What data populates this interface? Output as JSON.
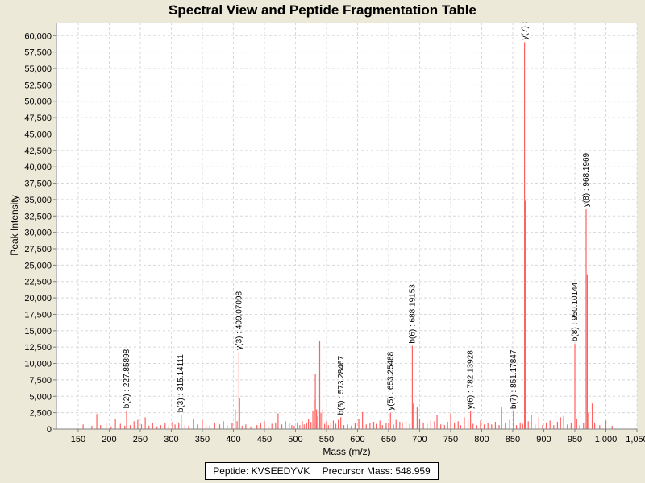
{
  "chart_data": {
    "type": "bar",
    "title": "Spectral View and Peptide Fragmentation Table",
    "xlabel": "Mass (m/z)",
    "ylabel": "Peak Intensity",
    "xlim": [
      115,
      1050
    ],
    "ylim": [
      0,
      62000
    ],
    "xticks": [
      150,
      200,
      250,
      300,
      350,
      400,
      450,
      500,
      550,
      600,
      650,
      700,
      750,
      800,
      850,
      900,
      950,
      1000,
      1050
    ],
    "xtick_labels": [
      "150",
      "200",
      "250",
      "300",
      "350",
      "400",
      "450",
      "500",
      "550",
      "600",
      "650",
      "700",
      "750",
      "800",
      "850",
      "900",
      "950",
      "1,000",
      "1,050"
    ],
    "yticks": [
      0,
      2500,
      5000,
      7500,
      10000,
      12500,
      15000,
      17500,
      20000,
      22500,
      25000,
      27500,
      30000,
      32500,
      35000,
      37500,
      40000,
      42500,
      45000,
      47500,
      50000,
      52500,
      55000,
      57500,
      60000
    ],
    "ytick_labels": [
      "0",
      "2,500",
      "5,000",
      "7,500",
      "10,000",
      "12,500",
      "15,000",
      "17,500",
      "20,000",
      "22,500",
      "25,000",
      "27,500",
      "30,000",
      "32,500",
      "35,000",
      "37,500",
      "40,000",
      "42,500",
      "45,000",
      "47,500",
      "50,000",
      "52,500",
      "55,000",
      "57,500",
      "60,000"
    ],
    "grid": true,
    "bar_color": "#FF6060",
    "peaks": [
      [
        158,
        700
      ],
      [
        172,
        500
      ],
      [
        180,
        2300
      ],
      [
        186,
        600
      ],
      [
        195,
        900
      ],
      [
        203,
        400
      ],
      [
        210,
        1500
      ],
      [
        218,
        800
      ],
      [
        225,
        500
      ],
      [
        228,
        2800
      ],
      [
        234,
        600
      ],
      [
        240,
        1200
      ],
      [
        246,
        1400
      ],
      [
        252,
        700
      ],
      [
        258,
        1800
      ],
      [
        264,
        500
      ],
      [
        270,
        900
      ],
      [
        277,
        400
      ],
      [
        283,
        600
      ],
      [
        290,
        900
      ],
      [
        296,
        500
      ],
      [
        302,
        1100
      ],
      [
        306,
        700
      ],
      [
        312,
        1000
      ],
      [
        316,
        2200
      ],
      [
        322,
        600
      ],
      [
        328,
        500
      ],
      [
        336,
        1500
      ],
      [
        342,
        700
      ],
      [
        350,
        1400
      ],
      [
        356,
        600
      ],
      [
        362,
        500
      ],
      [
        370,
        1000
      ],
      [
        378,
        700
      ],
      [
        384,
        1200
      ],
      [
        390,
        600
      ],
      [
        398,
        900
      ],
      [
        403,
        3000
      ],
      [
        406,
        1200
      ],
      [
        409,
        11700
      ],
      [
        410,
        4800
      ],
      [
        414,
        500
      ],
      [
        420,
        700
      ],
      [
        428,
        400
      ],
      [
        438,
        600
      ],
      [
        444,
        900
      ],
      [
        450,
        1200
      ],
      [
        456,
        500
      ],
      [
        462,
        800
      ],
      [
        468,
        1000
      ],
      [
        472,
        2400
      ],
      [
        478,
        700
      ],
      [
        484,
        1200
      ],
      [
        490,
        900
      ],
      [
        494,
        600
      ],
      [
        498,
        500
      ],
      [
        503,
        1000
      ],
      [
        507,
        600
      ],
      [
        511,
        1200
      ],
      [
        514,
        700
      ],
      [
        518,
        900
      ],
      [
        521,
        1500
      ],
      [
        525,
        1100
      ],
      [
        528,
        2800
      ],
      [
        530,
        4500
      ],
      [
        532,
        8400
      ],
      [
        534,
        3000
      ],
      [
        536,
        2000
      ],
      [
        539,
        13500
      ],
      [
        541,
        2500
      ],
      [
        544,
        3000
      ],
      [
        547,
        800
      ],
      [
        550,
        1200
      ],
      [
        553,
        600
      ],
      [
        557,
        1000
      ],
      [
        561,
        1300
      ],
      [
        565,
        800
      ],
      [
        569,
        1400
      ],
      [
        573,
        1800
      ],
      [
        578,
        600
      ],
      [
        584,
        700
      ],
      [
        590,
        500
      ],
      [
        596,
        900
      ],
      [
        602,
        1500
      ],
      [
        608,
        2600
      ],
      [
        614,
        700
      ],
      [
        620,
        900
      ],
      [
        626,
        1100
      ],
      [
        630,
        800
      ],
      [
        636,
        1300
      ],
      [
        640,
        600
      ],
      [
        646,
        900
      ],
      [
        650,
        1000
      ],
      [
        653,
        2500
      ],
      [
        658,
        700
      ],
      [
        662,
        1400
      ],
      [
        668,
        1100
      ],
      [
        672,
        900
      ],
      [
        678,
        1200
      ],
      [
        684,
        800
      ],
      [
        688.2,
        12700
      ],
      [
        690,
        3900
      ],
      [
        696,
        3300
      ],
      [
        700,
        1600
      ],
      [
        706,
        1000
      ],
      [
        712,
        800
      ],
      [
        718,
        1300
      ],
      [
        724,
        1200
      ],
      [
        728,
        2200
      ],
      [
        734,
        700
      ],
      [
        740,
        600
      ],
      [
        745,
        1100
      ],
      [
        750,
        2400
      ],
      [
        756,
        900
      ],
      [
        762,
        1200
      ],
      [
        766,
        600
      ],
      [
        772,
        1800
      ],
      [
        778,
        1400
      ],
      [
        782,
        2700
      ],
      [
        786,
        800
      ],
      [
        792,
        600
      ],
      [
        798,
        1300
      ],
      [
        804,
        700
      ],
      [
        810,
        900
      ],
      [
        816,
        700
      ],
      [
        822,
        1100
      ],
      [
        828,
        600
      ],
      [
        832,
        3300
      ],
      [
        838,
        900
      ],
      [
        845,
        1400
      ],
      [
        851,
        2700
      ],
      [
        856,
        600
      ],
      [
        862,
        1000
      ],
      [
        866,
        800
      ],
      [
        869,
        59000
      ],
      [
        870,
        34800
      ],
      [
        875,
        1200
      ],
      [
        880,
        2200
      ],
      [
        886,
        700
      ],
      [
        892,
        1800
      ],
      [
        898,
        600
      ],
      [
        904,
        900
      ],
      [
        910,
        1300
      ],
      [
        916,
        600
      ],
      [
        922,
        1100
      ],
      [
        927,
        1800
      ],
      [
        932,
        2000
      ],
      [
        938,
        700
      ],
      [
        944,
        900
      ],
      [
        950,
        13000
      ],
      [
        953,
        1600
      ],
      [
        958,
        600
      ],
      [
        964,
        900
      ],
      [
        968.2,
        33500
      ],
      [
        970,
        23600
      ],
      [
        972,
        2500
      ],
      [
        978,
        3900
      ],
      [
        982,
        1000
      ],
      [
        990,
        600
      ],
      [
        1000,
        1300
      ],
      [
        1010,
        500
      ]
    ],
    "annotations": [
      {
        "x": 227.85898,
        "y": 2800,
        "label": "b(2) : 227.85898"
      },
      {
        "x": 315.14111,
        "y": 2200,
        "label": "b(3) : 315.14111"
      },
      {
        "x": 409.07098,
        "y": 11700,
        "label": "y(3) : 409.07098"
      },
      {
        "x": 573.28467,
        "y": 1800,
        "label": "b(5) : 573.28467"
      },
      {
        "x": 653.25488,
        "y": 2500,
        "label": "y(5) : 653.25488"
      },
      {
        "x": 688.19153,
        "y": 12700,
        "label": "b(6) : 688.19153"
      },
      {
        "x": 782.13928,
        "y": 2700,
        "label": "y(6) : 782.13928"
      },
      {
        "x": 851.17847,
        "y": 2700,
        "label": "b(7) : 851.17847"
      },
      {
        "x": 869.2,
        "y": 59000,
        "label": "y(7) :"
      },
      {
        "x": 950.10144,
        "y": 13000,
        "label": "b(8) : 950.10144"
      },
      {
        "x": 968.1969,
        "y": 33500,
        "label": "y(8) : 968.1969"
      }
    ]
  },
  "footer": {
    "peptide_text": "Peptide: KVSEEDYVK",
    "precursor_text": "Precursor Mass: 548.959"
  }
}
